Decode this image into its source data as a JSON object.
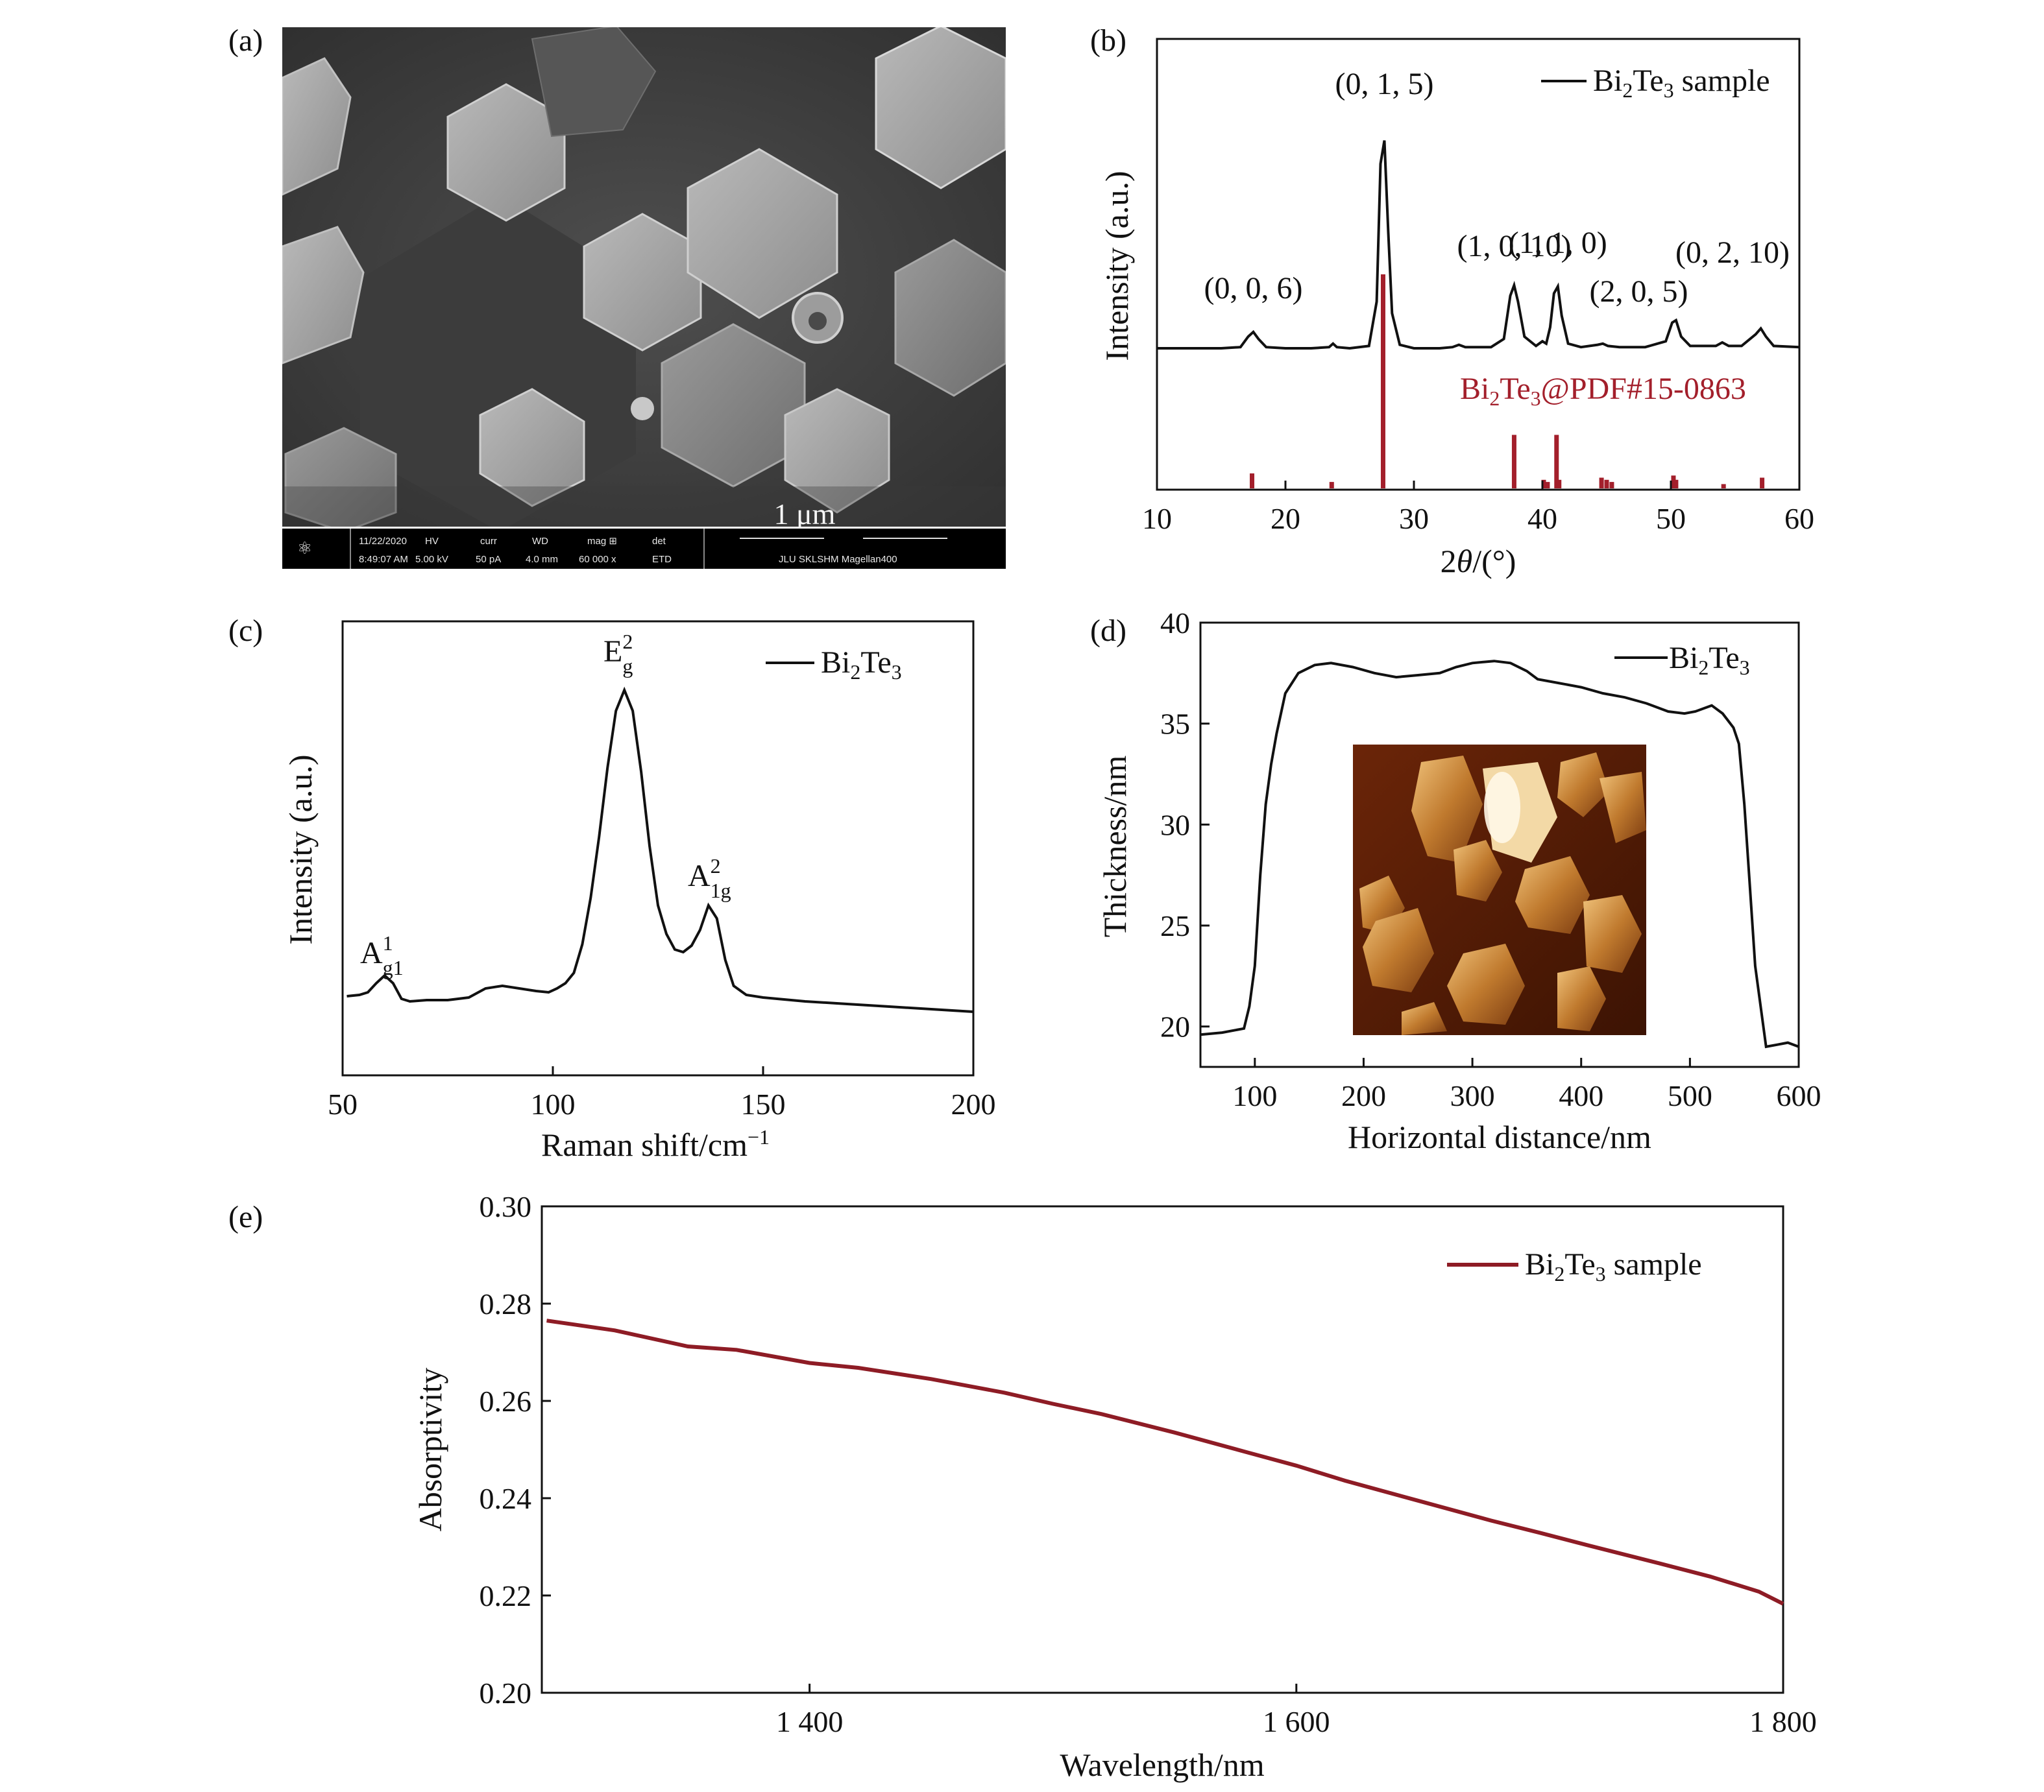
{
  "panels": {
    "a": {
      "label": "(a)",
      "scale_text": "1 μm",
      "infobar": {
        "headers": [
          "HV",
          "curr",
          "WD",
          "mag ⊞",
          "det"
        ],
        "values": [
          "5.00 kV",
          "50 pA",
          "4.0 mm",
          "60 000 x",
          "ETD"
        ],
        "date": "11/22/2020",
        "time": "8:49:07 AM",
        "instrument": "JLU SKLSHM Magellan400"
      }
    },
    "b": {
      "label": "(b)"
    },
    "c": {
      "label": "(c)"
    },
    "d": {
      "label": "(d)"
    },
    "e": {
      "label": "(e)"
    }
  },
  "colors": {
    "ink": "#111111",
    "reference": "#a31f2b",
    "absorption": "#8e1c25"
  },
  "chart_data": [
    {
      "panel": "b",
      "type": "line",
      "xlabel": "2θ/(°)",
      "ylabel": "Intensity (a.u.)",
      "xlim": [
        10,
        60
      ],
      "xticks": [
        10,
        20,
        30,
        40,
        50,
        60
      ],
      "yticks": [],
      "series": [
        {
          "name": "Bi2Te3 sample",
          "color": "#111111",
          "x": [
            10,
            15,
            16.5,
            17.1,
            17.5,
            17.9,
            18.5,
            20,
            22,
            23.4,
            23.7,
            24.0,
            25,
            26.5,
            27.1,
            27.4,
            27.7,
            28.0,
            28.3,
            28.9,
            30,
            32,
            33.0,
            33.5,
            34,
            36,
            37.0,
            37.5,
            37.8,
            38.1,
            38.6,
            39.5,
            40.0,
            40.3,
            40.6,
            40.9,
            41.2,
            41.5,
            42,
            43,
            44.3,
            44.7,
            45.1,
            46,
            48,
            49.6,
            50.1,
            50.4,
            50.8,
            51.5,
            53.5,
            54.0,
            54.5,
            55.5,
            56.6,
            57.0,
            57.4,
            58,
            60
          ],
          "y": [
            0,
            0,
            1,
            10,
            14,
            8,
            1,
            0,
            0,
            1,
            4,
            1,
            0,
            2,
            40,
            158,
            178,
            100,
            30,
            3,
            0,
            0,
            1,
            3,
            1,
            1,
            8,
            45,
            54,
            40,
            10,
            2,
            6,
            4,
            18,
            47,
            53,
            28,
            4,
            1,
            3,
            4,
            2,
            1,
            1,
            6,
            22,
            24,
            10,
            2,
            2,
            5,
            2,
            2,
            12,
            17,
            10,
            2,
            1
          ]
        }
      ],
      "reference": {
        "name": "Bi2Te3@PDF#15-0863",
        "color": "#a31f2b",
        "x": [
          17.4,
          23.6,
          27.6,
          37.8,
          40.1,
          40.4,
          41.1,
          41.3,
          44.6,
          45.0,
          45.4,
          50.2,
          50.4,
          54.1,
          57.1
        ],
        "h": [
          7,
          3,
          100,
          25,
          4,
          3,
          25,
          4,
          5,
          4,
          3,
          6,
          4,
          2,
          5
        ]
      },
      "annotations": [
        {
          "text": "(0, 0, 6)",
          "x": 17.5
        },
        {
          "text": "(0, 1, 5)",
          "x": 27.7
        },
        {
          "text": "(1, 0, 10)",
          "x": 37.8
        },
        {
          "text": "(1, 1, 0)",
          "x": 41.2
        },
        {
          "text": "(2, 0, 5)",
          "x": 47.5
        },
        {
          "text": "(0, 2, 10)",
          "x": 54.8
        }
      ]
    },
    {
      "panel": "c",
      "type": "line",
      "xlabel": "Raman shift/cm⁻¹",
      "ylabel": "Intensity (a.u.)",
      "xlim": [
        50,
        200
      ],
      "xticks": [
        50,
        100,
        150,
        200
      ],
      "yticks": [],
      "series": [
        {
          "name": "Bi2Te3",
          "color": "#111111",
          "x": [
            51,
            54,
            56,
            58,
            60,
            62,
            64,
            66,
            70,
            75,
            80,
            84,
            88,
            92,
            96,
            99,
            101,
            103,
            105,
            107,
            109,
            111,
            113,
            115,
            117,
            119,
            121,
            123,
            125,
            127,
            129,
            131,
            133,
            135,
            137,
            139,
            141,
            143,
            146,
            150,
            160,
            170,
            180,
            190,
            200
          ],
          "y": [
            12,
            13,
            15,
            22,
            28,
            22,
            10,
            8,
            9,
            9,
            11,
            18,
            20,
            18,
            16,
            15,
            18,
            22,
            30,
            52,
            88,
            135,
            188,
            232,
            248,
            232,
            185,
            128,
            82,
            60,
            48,
            46,
            51,
            63,
            82,
            72,
            40,
            20,
            13,
            11,
            8,
            6,
            4,
            2,
            0
          ]
        }
      ],
      "annotations": [
        {
          "text": "A",
          "sup": "1",
          "sub": "g1",
          "x": 59
        },
        {
          "text": "E",
          "sup": "2",
          "sub": "g",
          "x": 117
        },
        {
          "text": "A",
          "sup": "2",
          "sub": "1g",
          "x": 137
        }
      ]
    },
    {
      "panel": "d",
      "type": "line",
      "xlabel": "Horizontal distance/nm",
      "ylabel": "Thickness/nm",
      "xlim": [
        50,
        600
      ],
      "ylim": [
        18,
        40
      ],
      "xticks": [
        100,
        200,
        300,
        400,
        500,
        600
      ],
      "yticks": [
        20,
        25,
        30,
        35,
        40
      ],
      "series": [
        {
          "name": "Bi2Te3",
          "color": "#111111",
          "x": [
            50,
            70,
            90,
            95,
            100,
            105,
            110,
            115,
            120,
            128,
            140,
            155,
            170,
            190,
            210,
            230,
            250,
            270,
            285,
            300,
            320,
            335,
            350,
            360,
            380,
            400,
            420,
            440,
            460,
            480,
            495,
            505,
            520,
            530,
            540,
            545,
            550,
            555,
            560,
            570,
            580,
            590,
            600
          ],
          "y": [
            19.6,
            19.7,
            19.9,
            21.0,
            23.0,
            27.5,
            31.0,
            33.0,
            34.5,
            36.5,
            37.5,
            37.9,
            38.0,
            37.8,
            37.5,
            37.3,
            37.4,
            37.5,
            37.8,
            38.0,
            38.1,
            38.0,
            37.6,
            37.2,
            37.0,
            36.8,
            36.5,
            36.3,
            36.0,
            35.6,
            35.5,
            35.6,
            35.9,
            35.5,
            34.8,
            34.0,
            31.0,
            27.0,
            23.0,
            19.0,
            19.1,
            19.2,
            19.0
          ]
        }
      ]
    },
    {
      "panel": "e",
      "type": "line",
      "xlabel": "Wavelength/nm",
      "ylabel": "Absorptivity",
      "xlim": [
        1290,
        1800
      ],
      "ylim": [
        0.2,
        0.3
      ],
      "xticks": [
        1400,
        1600,
        1800
      ],
      "xtick_labels": [
        "1 400",
        "1 600",
        "1 800"
      ],
      "yticks": [
        0.2,
        0.22,
        0.24,
        0.26,
        0.28,
        0.3
      ],
      "ytick_labels": [
        "0.20",
        "0.22",
        "0.24",
        "0.26",
        "0.28",
        "0.30"
      ],
      "series": [
        {
          "name": "Bi2Te3 sample",
          "color": "#8e1c25",
          "x": [
            1292,
            1320,
            1350,
            1370,
            1400,
            1420,
            1450,
            1480,
            1500,
            1520,
            1550,
            1580,
            1600,
            1620,
            1650,
            1680,
            1700,
            1720,
            1750,
            1770,
            1790,
            1800
          ],
          "y": [
            0.2765,
            0.2745,
            0.2712,
            0.2705,
            0.2678,
            0.2668,
            0.2645,
            0.2617,
            0.2594,
            0.2573,
            0.2535,
            0.2494,
            0.2467,
            0.2436,
            0.2395,
            0.2354,
            0.2329,
            0.2303,
            0.2265,
            0.2239,
            0.2208,
            0.2183
          ]
        }
      ]
    }
  ]
}
